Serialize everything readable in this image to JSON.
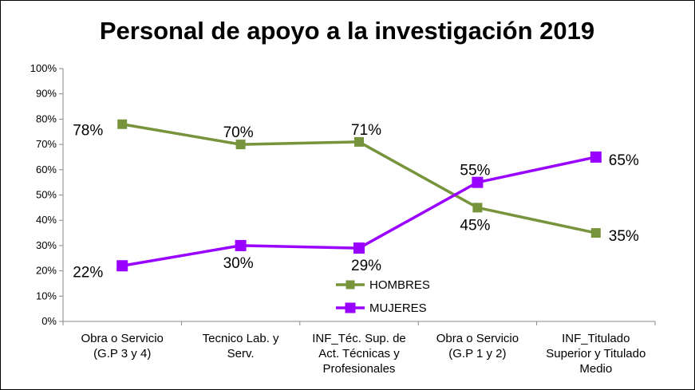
{
  "chart_data": {
    "type": "line",
    "title": "Personal de apoyo a la investigación 2019",
    "xlabel": "",
    "ylabel": "",
    "ylim": [
      0,
      100
    ],
    "yticks": [
      "0%",
      "10%",
      "20%",
      "30%",
      "40%",
      "50%",
      "60%",
      "70%",
      "80%",
      "90%",
      "100%"
    ],
    "grid": false,
    "legend_position": "bottom-center",
    "categories": [
      [
        "Obra o Servicio",
        "(G.P 3 y 4)"
      ],
      [
        "Tecnico Lab. y",
        "Serv."
      ],
      [
        "INF_Téc. Sup. de",
        "Act. Técnicas y",
        "Profesionales"
      ],
      [
        "Obra o Servicio",
        "(G.P 1 y 2)"
      ],
      [
        "INF_Titulado",
        "Superior y Titulado",
        "Medio"
      ]
    ],
    "series": [
      {
        "name": "HOMBRES",
        "color": "#77933C",
        "values": [
          78,
          70,
          71,
          45,
          35
        ],
        "labels": [
          "78%",
          "70%",
          "71%",
          "45%",
          "35%"
        ]
      },
      {
        "name": "MUJERES",
        "color": "#9900FF",
        "values": [
          22,
          30,
          29,
          55,
          65
        ],
        "labels": [
          "22%",
          "30%",
          "29%",
          "55%",
          "65%"
        ]
      }
    ]
  }
}
